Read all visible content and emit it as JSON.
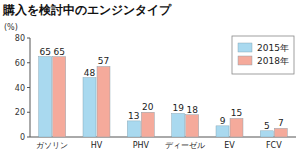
{
  "chart_data": {
    "type": "bar",
    "title": "購入を検討中のエンジンタイプ",
    "y_label": "(%)",
    "categories": [
      "ガソリン",
      "HV",
      "PHV",
      "ディーゼル",
      "EV",
      "FCV"
    ],
    "series": [
      {
        "name": "2015年",
        "color": "#a9d9ef",
        "values": [
          65,
          48,
          13,
          19,
          9,
          5
        ]
      },
      {
        "name": "2018年",
        "color": "#f5aa9b",
        "values": [
          65,
          57,
          20,
          18,
          15,
          7
        ]
      }
    ],
    "ylim": [
      0,
      80
    ],
    "yticks": [
      0,
      20,
      40,
      60,
      80
    ],
    "grid": false,
    "legend": "top-right",
    "data_labels": true
  }
}
